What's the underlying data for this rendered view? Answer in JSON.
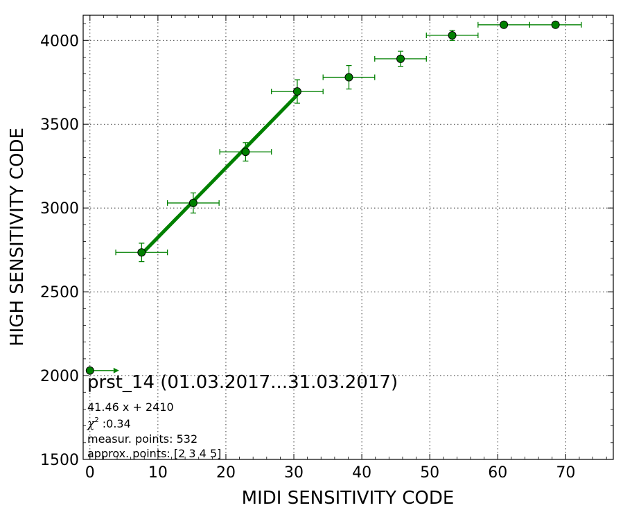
{
  "chart_data": {
    "type": "scatter",
    "xlabel": "MIDI SENSITIVITY CODE",
    "ylabel": "HIGH SENSITIVITY CODE",
    "xlim": [
      -1,
      77
    ],
    "ylim": [
      1500,
      4150
    ],
    "xticks": [
      "0",
      "10",
      "20",
      "30",
      "40",
      "50",
      "60",
      "70"
    ],
    "xtick_values": [
      0,
      10,
      20,
      30,
      40,
      50,
      60,
      70
    ],
    "yticks": [
      "1500",
      "2000",
      "2500",
      "3000",
      "3500",
      "4000"
    ],
    "ytick_values": [
      1500,
      2000,
      2500,
      3000,
      3500,
      4000
    ],
    "grid": true,
    "color": "#008000",
    "points": [
      {
        "x": 0,
        "y": 2030,
        "xerr": 0,
        "yerr": 0,
        "overflow_arrow": true
      },
      {
        "x": 7.6,
        "y": 2735,
        "xerr": 3.8,
        "yerr": 55
      },
      {
        "x": 15.2,
        "y": 3030,
        "xerr": 3.8,
        "yerr": 60
      },
      {
        "x": 22.9,
        "y": 3335,
        "xerr": 3.8,
        "yerr": 55
      },
      {
        "x": 30.5,
        "y": 3695,
        "xerr": 3.8,
        "yerr": 70
      },
      {
        "x": 38.1,
        "y": 3780,
        "xerr": 3.8,
        "yerr": 70
      },
      {
        "x": 45.7,
        "y": 3890,
        "xerr": 3.8,
        "yerr": 45
      },
      {
        "x": 53.3,
        "y": 4030,
        "xerr": 3.8,
        "yerr": 30
      },
      {
        "x": 60.9,
        "y": 4093,
        "xerr": 3.8,
        "yerr": 0
      },
      {
        "x": 68.5,
        "y": 4093,
        "xerr": 3.8,
        "yerr": 0
      }
    ],
    "fit_line": {
      "slope": 41.46,
      "intercept": 2410,
      "x_from": 7.6,
      "x_to": 30.5
    },
    "annotations": {
      "title": "prst_14 (01.03.2017...31.03.2017)",
      "equation": "41.46 x + 2410",
      "chi_symbol": "χ",
      "chi_sup": "2",
      "chi_value": " :0.34",
      "measur_points": "measur. points: 532",
      "approx_points": "approx. points: [2 3 4 5]"
    }
  }
}
